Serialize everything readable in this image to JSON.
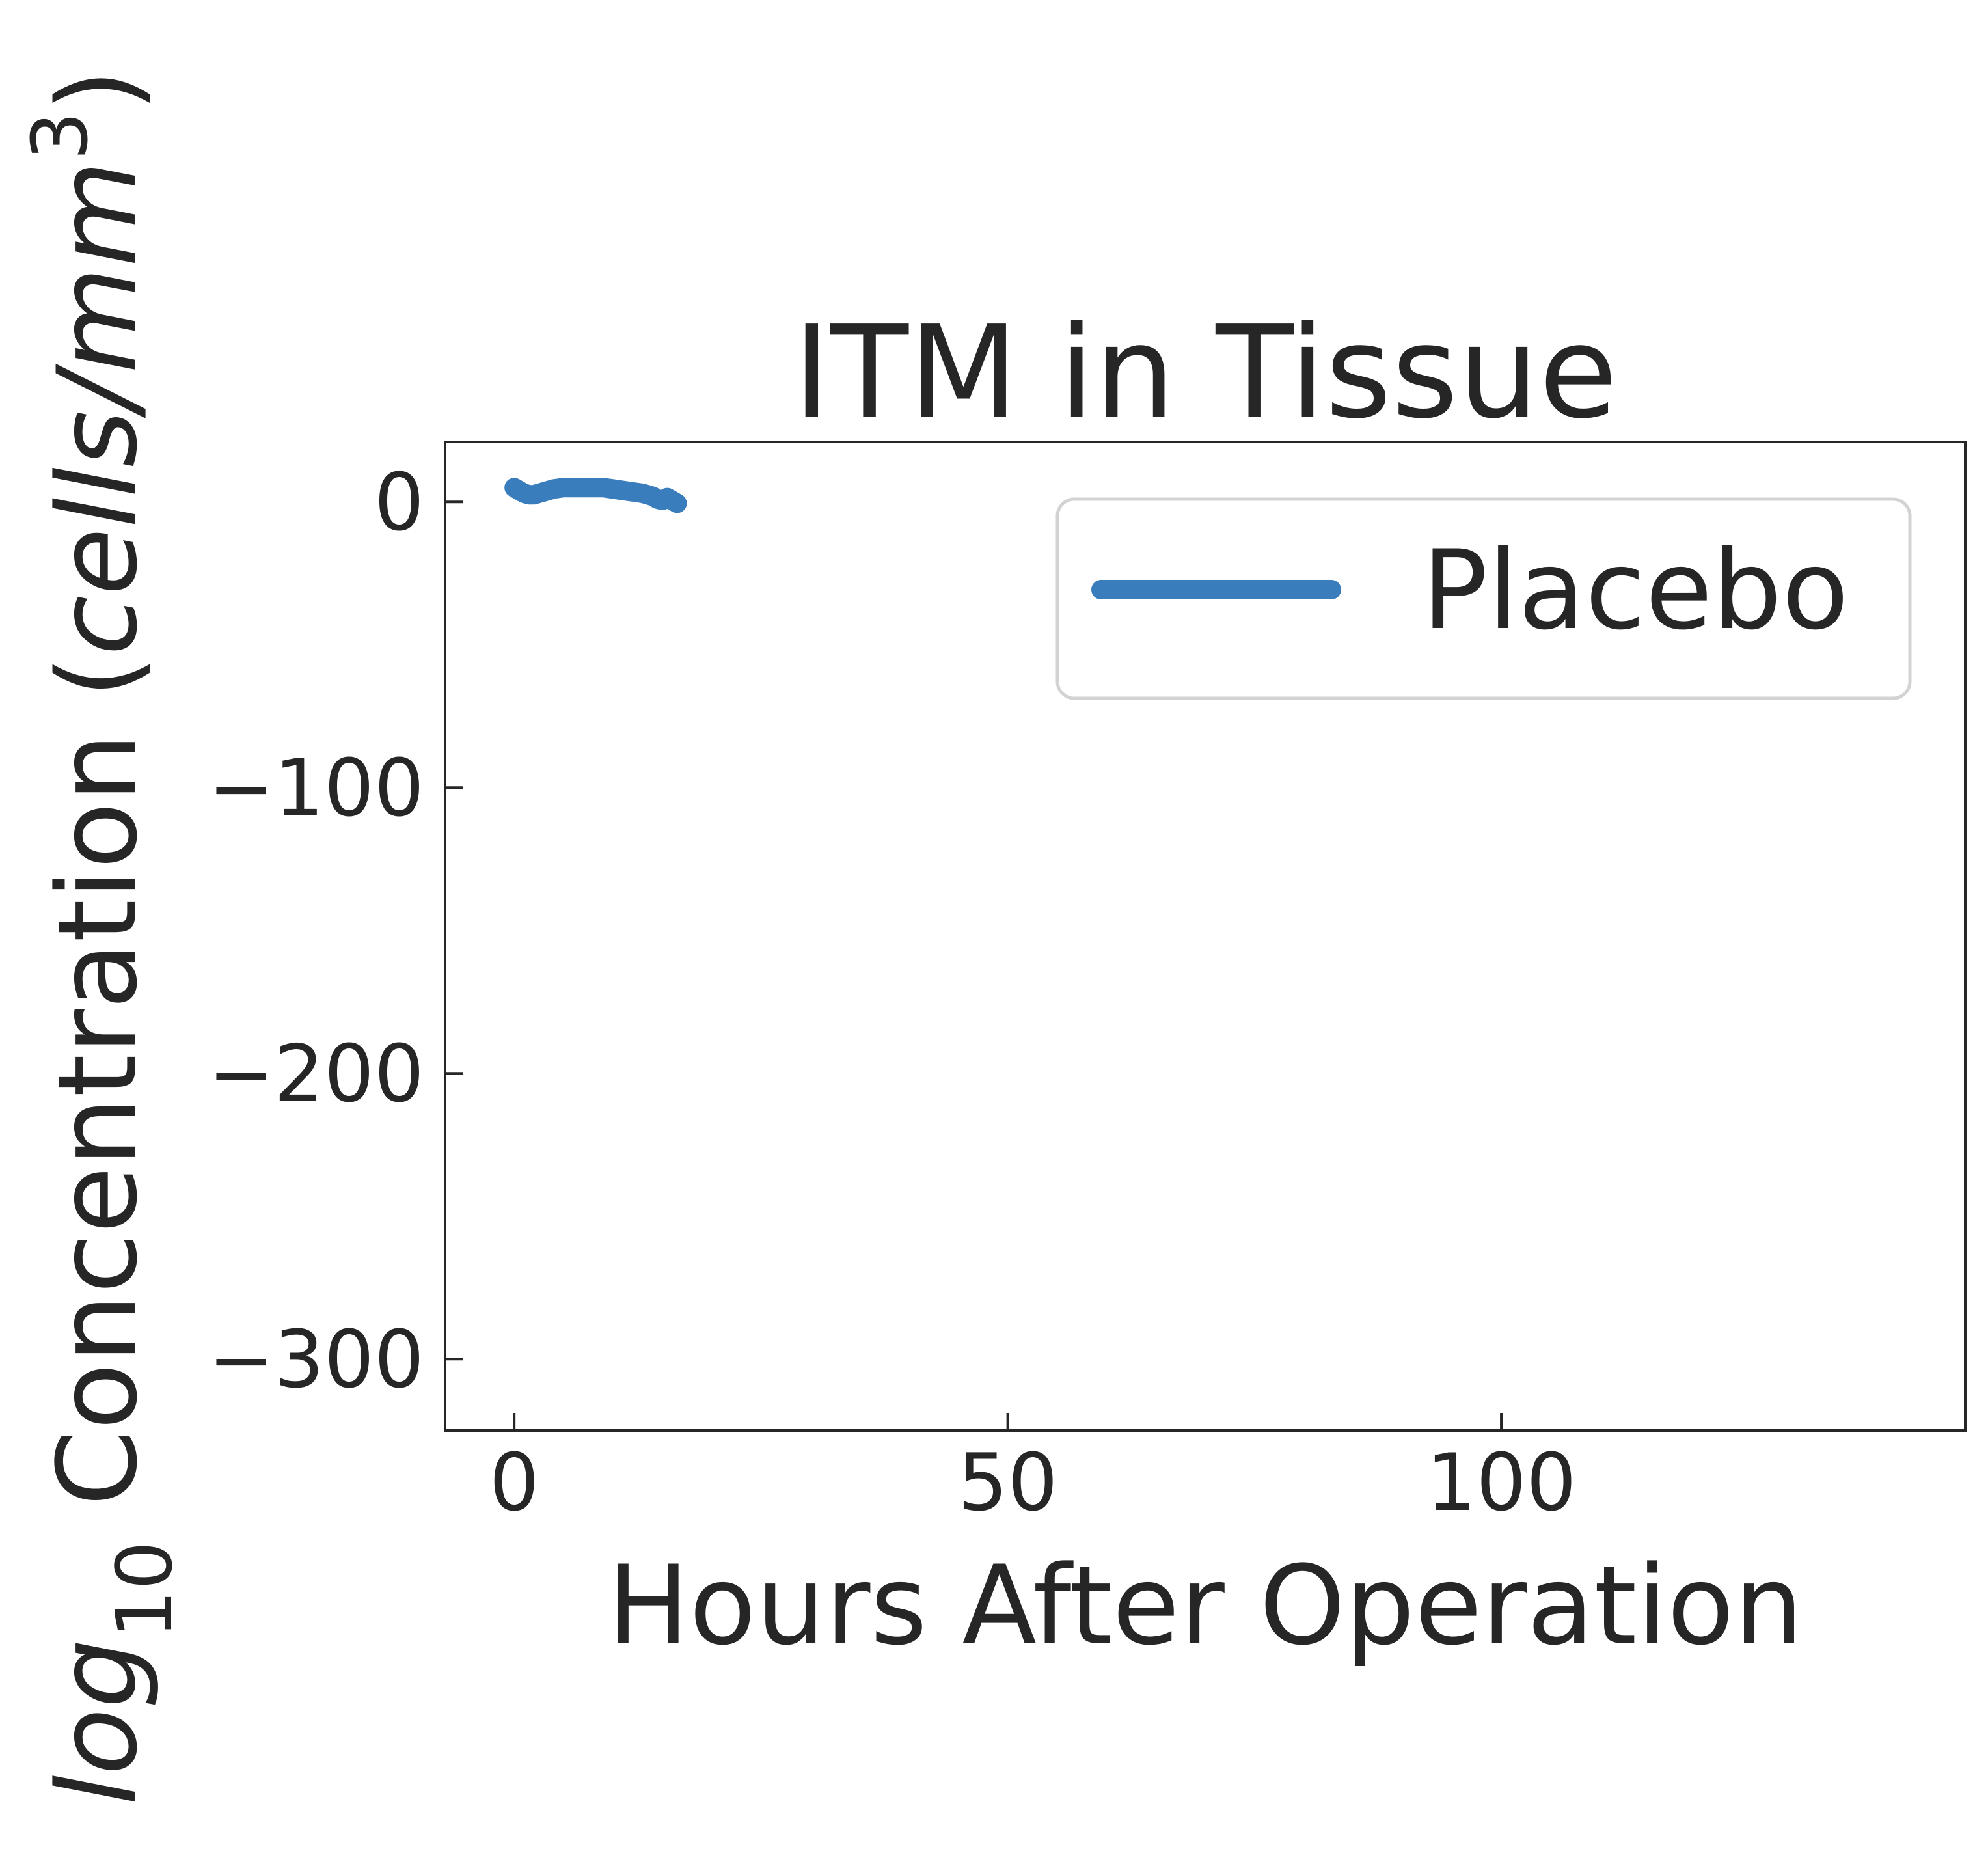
{
  "chart_data": {
    "type": "line",
    "title": "ITM in Tissue",
    "xlabel": "Hours After Operation",
    "ylabel": {
      "prefix": "log",
      "subscript": "10",
      "main": " Concentration (",
      "italic": "cells/mm",
      "superscript": "3",
      "suffix": ")"
    },
    "xlim": [
      -7,
      147
    ],
    "ylim": [
      -325,
      21
    ],
    "xticks": [
      0,
      50,
      100
    ],
    "xtick_labels": [
      "0",
      "50",
      "100"
    ],
    "yticks": [
      0,
      -100,
      -200,
      -300
    ],
    "ytick_labels": [
      "0",
      "−100",
      "−200",
      "−300"
    ],
    "grid": false,
    "legend_position": "top-right",
    "series": [
      {
        "name": "Placebo",
        "color": "#3a7dbd",
        "x": [
          0,
          0.5,
          1,
          1.5,
          2,
          2.5,
          3,
          4,
          5,
          6,
          7,
          8,
          9,
          10,
          11,
          12,
          13,
          14,
          14.5,
          15,
          15.5,
          16,
          16.5
        ],
        "y": [
          5,
          4,
          3,
          2.5,
          2.5,
          3,
          3.5,
          4.5,
          5,
          5,
          5,
          5,
          5,
          4.5,
          4,
          3.5,
          3,
          2,
          1,
          0.5,
          1.5,
          0.5,
          -0.5
        ]
      }
    ]
  }
}
